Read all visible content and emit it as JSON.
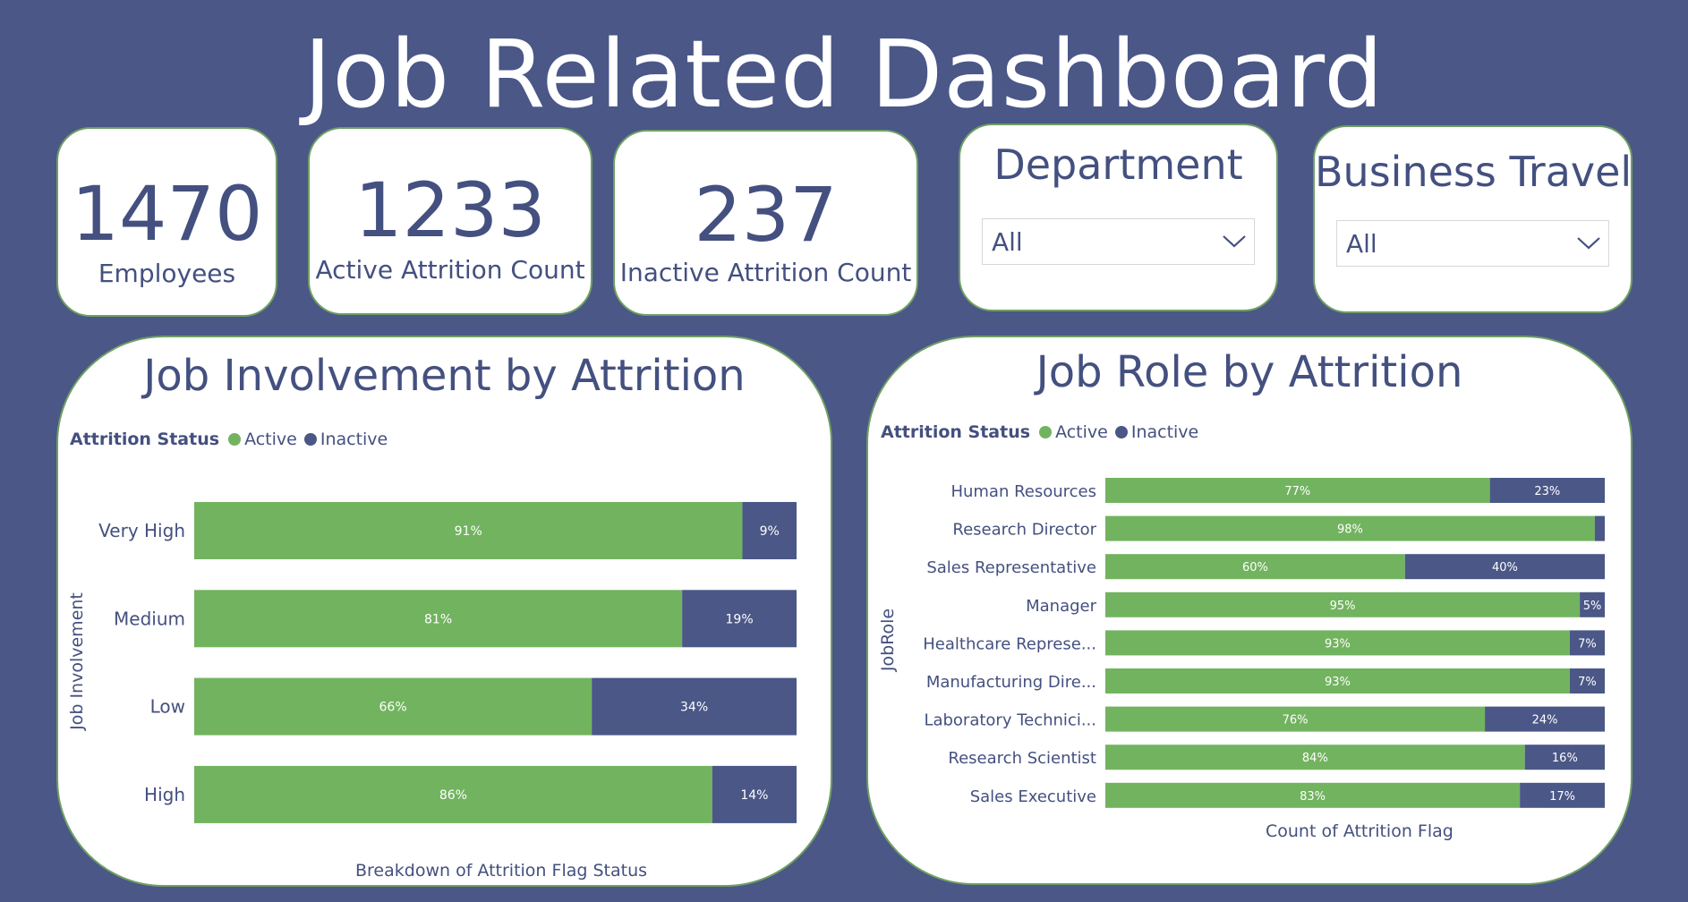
{
  "header": {
    "title": "Job Related Dashboard"
  },
  "kpis": [
    {
      "value": "1470",
      "label": "Employees"
    },
    {
      "value": "1233",
      "label": "Active Attrition Count"
    },
    {
      "value": "237",
      "label": "Inactive Attrition Count"
    }
  ],
  "filters": {
    "department": {
      "label": "Department",
      "value": "All"
    },
    "business_travel": {
      "label": "Business Travel",
      "value": "All"
    }
  },
  "colors": {
    "background": "#4a5787",
    "active": "#72b35f",
    "inactive": "#4a5787",
    "card_border": "#6f9f63"
  },
  "icons": {
    "dropdown": "chevron-down-icon"
  },
  "chart_data": [
    {
      "type": "bar",
      "orientation": "horizontal",
      "stacked": "100%",
      "title": "Job Involvement by Attrition",
      "legend_title": "Attrition Status",
      "legend_position": "top-left",
      "xlabel": "Breakdown of Attrition Flag Status",
      "ylabel": "Job Involvement",
      "categories": [
        "Very High",
        "Medium",
        "Low",
        "High"
      ],
      "series": [
        {
          "name": "Active",
          "values": [
            91,
            81,
            66,
            86
          ]
        },
        {
          "name": "Inactive",
          "values": [
            9,
            19,
            34,
            14
          ]
        }
      ],
      "data_labels": {
        "Active": [
          "91%",
          "81%",
          "66%",
          "86%"
        ],
        "Inactive": [
          "9%",
          "19%",
          "34%",
          "14%"
        ]
      },
      "grid": false
    },
    {
      "type": "bar",
      "orientation": "horizontal",
      "stacked": "100%",
      "title": "Job Role by Attrition",
      "legend_title": "Attrition Status",
      "legend_position": "top-left",
      "xlabel": "Count of Attrition Flag",
      "ylabel": "JobRole",
      "categories": [
        "Human Resources",
        "Research Director",
        "Sales Representative",
        "Manager",
        "Healthcare Represe...",
        "Manufacturing Dire...",
        "Laboratory Technici...",
        "Research Scientist",
        "Sales Executive"
      ],
      "series": [
        {
          "name": "Active",
          "values": [
            77,
            98,
            60,
            95,
            93,
            93,
            76,
            84,
            83
          ]
        },
        {
          "name": "Inactive",
          "values": [
            23,
            2,
            40,
            5,
            7,
            7,
            24,
            16,
            17
          ]
        }
      ],
      "data_labels": {
        "Active": [
          "77%",
          "98%",
          "60%",
          "95%",
          "93%",
          "93%",
          "76%",
          "84%",
          "83%"
        ],
        "Inactive": [
          "23%",
          "",
          "40%",
          "5%",
          "7%",
          "7%",
          "24%",
          "16%",
          "17%"
        ]
      },
      "grid": false
    }
  ]
}
